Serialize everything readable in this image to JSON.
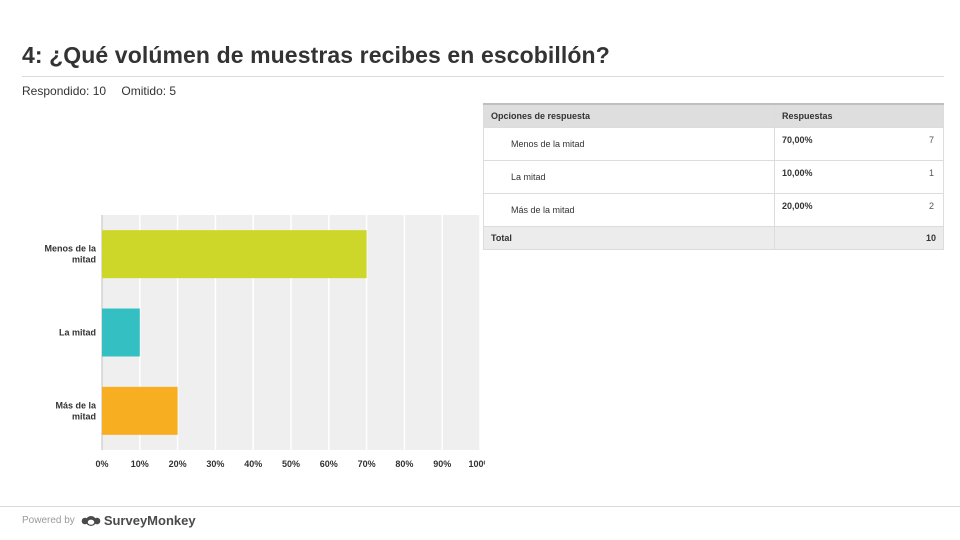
{
  "page": {
    "title": "4: ¿Qué volúmen de muestras recibes en escobillón?",
    "answered": "Respondido: 10",
    "skipped": "Omitido: 5"
  },
  "chart_data": {
    "type": "bar",
    "orientation": "horizontal",
    "categories": [
      "Menos de la mitad",
      "La mitad",
      "Más de la mitad"
    ],
    "values": [
      70,
      10,
      20
    ],
    "colors": [
      "#cdd72a",
      "#34c0c3",
      "#f7ae20"
    ],
    "xlim": [
      0,
      100
    ],
    "xticks": [
      "0%",
      "10%",
      "20%",
      "30%",
      "40%",
      "50%",
      "60%",
      "70%",
      "80%",
      "90%",
      "100%"
    ],
    "grid": true
  },
  "table": {
    "headers": [
      "Opciones de respuesta",
      "Respuestas"
    ],
    "rows": [
      {
        "option": "Menos de la mitad",
        "percent": "70,00%",
        "count": "7"
      },
      {
        "option": "La mitad",
        "percent": "10,00%",
        "count": "1"
      },
      {
        "option": "Más de la mitad",
        "percent": "20,00%",
        "count": "2"
      }
    ],
    "total_label": "Total",
    "total_value": "10"
  },
  "footer": {
    "powered_by": "Powered by",
    "brand": "SurveyMonkey",
    "logo_icon": "surveymonkey-logo-icon"
  }
}
